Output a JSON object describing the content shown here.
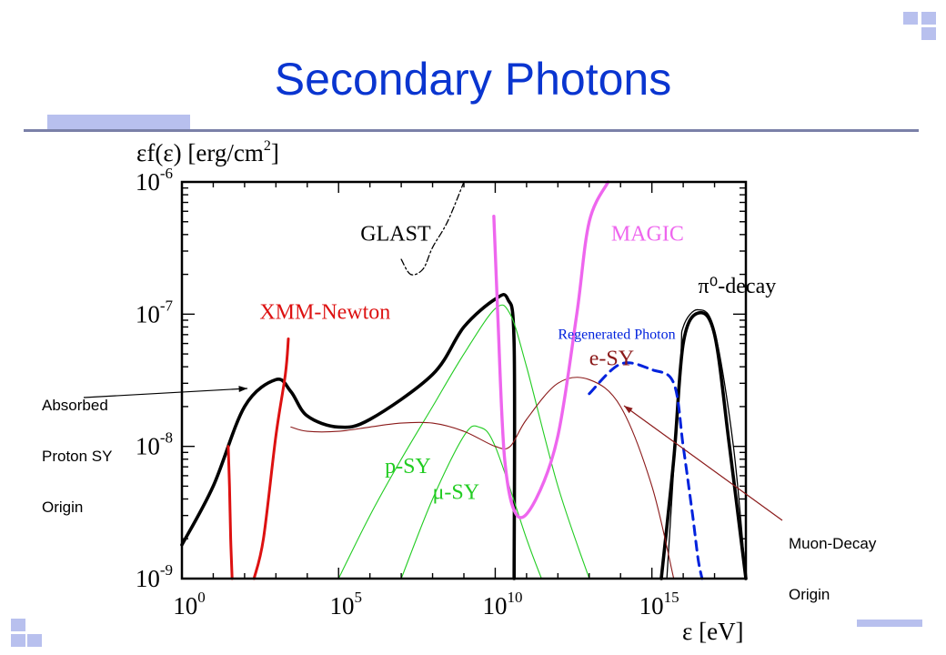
{
  "slide": {
    "title": "Secondary Photons",
    "annotations": {
      "absorbed": [
        "Absorbed",
        "Proton SY",
        "Origin"
      ],
      "muon": [
        "Muon-Decay",
        "Origin"
      ]
    }
  },
  "chart_data": {
    "type": "line",
    "ylabel_parts": [
      "εf(ε) [erg/cm",
      "2",
      "]"
    ],
    "xlabel": "ε [eV]",
    "xscale": "log",
    "yscale": "log",
    "xlim": [
      1,
      1e+18
    ],
    "ylim": [
      1e-09,
      1e-06
    ],
    "x_ticks": [
      {
        "value": 1,
        "base": "10",
        "exp": "0"
      },
      {
        "value": 100000,
        "base": "10",
        "exp": "5"
      },
      {
        "value": 10000000000,
        "base": "10",
        "exp": "10"
      },
      {
        "value": 1000000000000000.0,
        "base": "10",
        "exp": "15"
      }
    ],
    "y_ticks": [
      {
        "value": 1e-06,
        "base": "10",
        "exp": "-6"
      },
      {
        "value": 1e-07,
        "base": "10",
        "exp": "-7"
      },
      {
        "value": 1e-08,
        "base": "10",
        "exp": "-8"
      },
      {
        "value": 1e-09,
        "base": "10",
        "exp": "-9"
      }
    ],
    "colors": {
      "total": "#000000",
      "xmm": "#dd1111",
      "magic": "#ee66ee",
      "psy": "#22cc22",
      "esy": "#8b1a1a",
      "regen": "#0022dd",
      "axis": "#000000"
    },
    "series": [
      {
        "key": "total",
        "name": "",
        "x": [
          1,
          10,
          100,
          1000,
          3000,
          10000,
          100000,
          1000000,
          100000000,
          1000000000,
          10000000000,
          25000000000,
          40000000000,
          40000000000
        ],
        "y": [
          1.8e-09,
          5e-09,
          2e-08,
          3.2e-08,
          2.6e-08,
          1.7e-08,
          1.4e-08,
          1.6e-08,
          3.5e-08,
          8e-08,
          1.3e-07,
          1.3e-07,
          6e-08,
          1e-09
        ]
      },
      {
        "key": "total",
        "name": "",
        "x": [
          2000000000000000.0,
          5000000000000000.0,
          1e+16,
          3e+16,
          1e+17,
          3e+17,
          1e+18
        ],
        "y": [
          1e-09,
          8e-09,
          6e-08,
          1.02e-07,
          7e-08,
          1e-08,
          1e-09
        ]
      },
      {
        "key": "pion",
        "name": "π⁰-decay",
        "x": [
          3000000000000000.0,
          8000000000000000.0,
          1e+16,
          3e+16,
          1e+17,
          4e+17,
          1e+18
        ],
        "y": [
          1e-09,
          4e-08,
          8e-08,
          1.08e-07,
          7.5e-08,
          1e-08,
          1e-09
        ]
      },
      {
        "key": "psy",
        "name": "p-SY",
        "x": [
          100000,
          1000000,
          10000000,
          100000000,
          1000000000,
          10000000000,
          30000000000,
          100000000000,
          1000000000000,
          10000000000000
        ],
        "y": [
          1e-09,
          3e-09,
          8e-09,
          2e-08,
          5e-08,
          1.1e-07,
          1e-07,
          4e-08,
          5e-09,
          1e-09
        ]
      },
      {
        "key": "psy",
        "name": "μ-SY",
        "x": [
          10000000,
          100000000,
          1000000000,
          3000000000,
          10000000000,
          100000000000,
          300000000000
        ],
        "y": [
          1e-09,
          4e-09,
          1.2e-08,
          1.4e-08,
          1e-08,
          2e-09,
          1e-09
        ]
      },
      {
        "key": "esy",
        "name": "e-SY",
        "x": [
          3000,
          10000,
          100000,
          1000000,
          10000000,
          100000000,
          1000000000,
          10000000000,
          30000000000,
          100000000000,
          1000000000000,
          10000000000000,
          100000000000000,
          1000000000000000,
          5000000000000000.0
        ],
        "y": [
          1.4e-08,
          1.3e-08,
          1.3e-08,
          1.4e-08,
          1.5e-08,
          1.5e-08,
          1.3e-08,
          1e-08,
          1e-08,
          1.6e-08,
          3e-08,
          3.2e-08,
          2e-08,
          5e-09,
          1e-09
        ]
      },
      {
        "key": "regen",
        "name": "Regenerated Photon",
        "x": [
          10000000000000,
          100000000000000,
          1000000000000000,
          5000000000000000.0,
          1e+16,
          2e+16,
          3e+16,
          4e+16
        ],
        "y": [
          2.5e-08,
          4.2e-08,
          3.8e-08,
          3e-08,
          1e-08,
          3e-09,
          1.4e-09,
          1e-09
        ]
      },
      {
        "key": "xmm",
        "name": "XMM-Newton",
        "x": [
          30,
          33,
          36,
          40
        ],
        "y": [
          1e-08,
          5e-09,
          2e-09,
          1e-09
        ]
      },
      {
        "key": "xmm",
        "name": "",
        "x": [
          200,
          400,
          1000,
          2000,
          2500
        ],
        "y": [
          1e-09,
          2e-09,
          1.2e-08,
          3.5e-08,
          6.5e-08
        ]
      },
      {
        "key": "magic",
        "name": "MAGIC",
        "x": [
          9000000000,
          12000000000,
          20000000000,
          50000000000,
          200000000000,
          1000000000000,
          4000000000000,
          10000000000000,
          40000000000000
        ],
        "y": [
          5.5e-07,
          1e-07,
          8e-09,
          3e-09,
          4e-09,
          1.2e-08,
          1e-07,
          5e-07,
          1e-06
        ]
      },
      {
        "key": "glast",
        "name": "GLAST",
        "x": [
          10000000,
          20000000,
          50000000,
          100000000,
          300000000,
          1000000000
        ],
        "y": [
          2.6e-07,
          2e-07,
          2.2e-07,
          3.2e-07,
          5e-07,
          1e-06
        ]
      }
    ],
    "labels": [
      {
        "text": "XMM-Newton",
        "color": "xmm",
        "x": 300,
        "y": 9.2e-08
      },
      {
        "text": "GLAST",
        "color": "axis",
        "x": 500000,
        "y": 3.6e-07
      },
      {
        "text": "MAGIC",
        "color": "magic",
        "x": 50000000000000,
        "y": 3.6e-07
      },
      {
        "text": "π⁰-decay",
        "color": "axis",
        "x": 3e+16,
        "y": 1.45e-07
      },
      {
        "text": "Regenerated Photon",
        "color": "regen",
        "x": 1000000000000,
        "y": 6.5e-08
      },
      {
        "text": "e-SY",
        "color": "esy",
        "x": 10000000000000,
        "y": 4.1e-08
      },
      {
        "text": "p-SY",
        "color": "psy",
        "x": 3000000,
        "y": 6.3e-09
      },
      {
        "text": "μ-SY",
        "color": "psy",
        "x": 100000000,
        "y": 4e-09
      }
    ]
  }
}
